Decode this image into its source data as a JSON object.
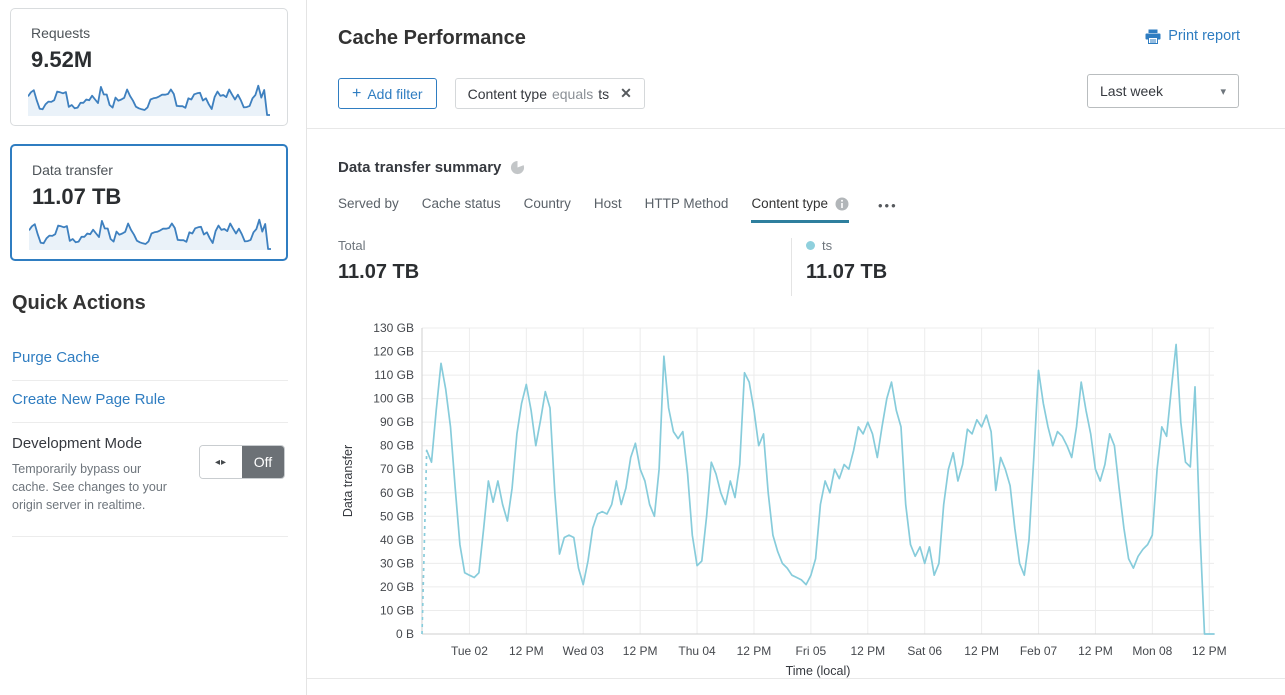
{
  "colors": {
    "link_blue": "#2f7dc1",
    "chart_line": "#87ccdb",
    "legend_dot": "#8fd0dd",
    "sparkline_stroke": "#3e80bf",
    "sparkline_fill": "#eaf2f9",
    "active_tab_underline": "#2e7f9e",
    "toggle_off_bg": "#6c7176"
  },
  "sidebar": {
    "cards": [
      {
        "label": "Requests",
        "value": "9.52M"
      },
      {
        "label": "Data transfer",
        "value": "11.07 TB"
      }
    ],
    "quick_actions": {
      "title": "Quick Actions",
      "links": [
        "Purge Cache",
        "Create New Page Rule"
      ],
      "dev_mode": {
        "title": "Development Mode",
        "description": "Temporarily bypass our cache. See changes to your origin server in realtime.",
        "toggle_state": "Off",
        "toggle_glyph": "◂▸"
      }
    }
  },
  "header": {
    "title": "Cache Performance",
    "print_label": "Print report",
    "add_filter_label": "Add filter",
    "plus_glyph": "+",
    "filter_chip": {
      "field": "Content type",
      "operator": "equals",
      "value": "ts",
      "close_glyph": "✕"
    },
    "range_selected": "Last week",
    "caret_glyph": "▾"
  },
  "summary": {
    "title": "Data transfer summary",
    "tabs": [
      {
        "label": "Served by"
      },
      {
        "label": "Cache status"
      },
      {
        "label": "Country"
      },
      {
        "label": "Host"
      },
      {
        "label": "HTTP Method"
      },
      {
        "label": "Content type"
      }
    ],
    "more_glyph": "•••",
    "total_label": "Total",
    "total_value": "11.07 TB",
    "legend": {
      "name": "ts",
      "value": "11.07 TB"
    }
  },
  "chart_data": {
    "type": "line",
    "xlabel": "Time (local)",
    "ylabel": "Data transfer",
    "unit": "GB",
    "ylim": [
      0,
      130
    ],
    "y_tick_step": 10,
    "y_ticks": [
      "130 GB",
      "120 GB",
      "110 GB",
      "100 GB",
      "90 GB",
      "80 GB",
      "70 GB",
      "60 GB",
      "50 GB",
      "40 GB",
      "30 GB",
      "20 GB",
      "10 GB",
      "0 B"
    ],
    "x_ticks": [
      "Tue 02",
      "12 PM",
      "Wed 03",
      "12 PM",
      "Thu 04",
      "12 PM",
      "Fri 05",
      "12 PM",
      "Sat 06",
      "12 PM",
      "Feb 07",
      "12 PM",
      "Mon 08",
      "12 PM"
    ],
    "x_tick_indices": [
      10,
      22,
      34,
      46,
      58,
      70,
      82,
      94,
      106,
      118,
      130,
      142,
      154,
      166
    ],
    "grid": true,
    "legend_position": "top-right",
    "series": [
      {
        "name": "ts",
        "color": "#87ccdb",
        "dashed_prefix": 1,
        "values": [
          0,
          78,
          73,
          95,
          115,
          104,
          88,
          62,
          38,
          26,
          25,
          24,
          26,
          45,
          65,
          56,
          65,
          55,
          48,
          62,
          85,
          98,
          106,
          95,
          80,
          91,
          103,
          96,
          60,
          34,
          41,
          42,
          41,
          28,
          21,
          31,
          45,
          51,
          52,
          51,
          55,
          65,
          55,
          62,
          75,
          81,
          70,
          65,
          55,
          50,
          70,
          118,
          96,
          86,
          83,
          86,
          68,
          42,
          29,
          31,
          50,
          73,
          68,
          60,
          55,
          65,
          58,
          72,
          111,
          107,
          95,
          80,
          85,
          60,
          42,
          35,
          30,
          28,
          25,
          24,
          23,
          21,
          25,
          32,
          55,
          65,
          60,
          70,
          66,
          72,
          70,
          78,
          88,
          85,
          90,
          85,
          75,
          88,
          100,
          107,
          95,
          88,
          55,
          38,
          33,
          37,
          30,
          37,
          25,
          30,
          55,
          70,
          77,
          65,
          72,
          87,
          85,
          91,
          88,
          93,
          86,
          61,
          75,
          70,
          63,
          45,
          30,
          25,
          40,
          75,
          112,
          98,
          88,
          80,
          86,
          84,
          80,
          75,
          88,
          107,
          95,
          85,
          70,
          65,
          72,
          85,
          80,
          62,
          45,
          32,
          28,
          33,
          36,
          38,
          42,
          70,
          88,
          84,
          104,
          123,
          90,
          73,
          71,
          105,
          45,
          0,
          0,
          0
        ]
      }
    ]
  }
}
